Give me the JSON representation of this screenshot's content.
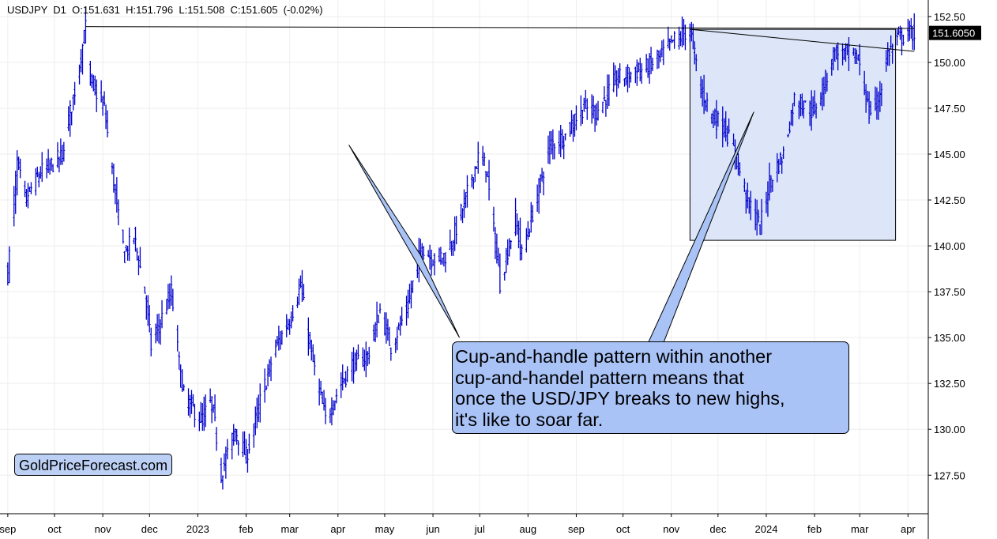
{
  "header": {
    "symbol": "USDJPY",
    "timeframe": "D1",
    "open_label": "O:",
    "open": "151.631",
    "high_label": "H:",
    "high": "151.796",
    "low_label": "L:",
    "low": "151.508",
    "close_label": "C:",
    "close": "151.605",
    "change": "(-0.02%)"
  },
  "price_badge": "151.6050",
  "annotation_lines": [
    "Cup-and-handle pattern within another",
    "cup-and-handel pattern means that",
    "once the USD/JPY breaks to new highs,",
    "it's like to soar far."
  ],
  "brand": "GoldPriceForecast.com",
  "colors": {
    "candle": "#0000cc",
    "highlight_fill": "#dce6f8",
    "callout_fill": "#a9c3f7",
    "badge_fill": "#000000",
    "grid": "#eeeeee"
  },
  "chart_data": {
    "type": "bar",
    "style": "ohlc",
    "ylim": [
      125.4,
      153.4
    ],
    "y_ticks": [
      127.5,
      130.0,
      132.5,
      135.0,
      137.5,
      140.0,
      142.5,
      145.0,
      147.5,
      150.0,
      152.5
    ],
    "y_tick_labels": [
      "127.50",
      "130.00",
      "132.50",
      "135.00",
      "137.50",
      "140.00",
      "142.50",
      "145.00",
      "147.50",
      "150.00",
      "152.50"
    ],
    "x_ticks": [
      {
        "label": "sep",
        "date": "2022-09-01"
      },
      {
        "label": "oct",
        "date": "2022-10-01"
      },
      {
        "label": "nov",
        "date": "2022-11-01"
      },
      {
        "label": "dec",
        "date": "2022-12-01"
      },
      {
        "label": "2023",
        "date": "2023-01-01"
      },
      {
        "label": "feb",
        "date": "2023-02-01"
      },
      {
        "label": "mar",
        "date": "2023-03-01"
      },
      {
        "label": "apr",
        "date": "2023-04-01"
      },
      {
        "label": "may",
        "date": "2023-05-01"
      },
      {
        "label": "jun",
        "date": "2023-06-01"
      },
      {
        "label": "jul",
        "date": "2023-07-01"
      },
      {
        "label": "aug",
        "date": "2023-08-01"
      },
      {
        "label": "sep",
        "date": "2023-09-01"
      },
      {
        "label": "oct",
        "date": "2023-10-01"
      },
      {
        "label": "nov",
        "date": "2023-11-01"
      },
      {
        "label": "dec",
        "date": "2023-12-01"
      },
      {
        "label": "2024",
        "date": "2024-01-01"
      },
      {
        "label": "feb",
        "date": "2024-02-01"
      },
      {
        "label": "mar",
        "date": "2024-03-01"
      },
      {
        "label": "apr",
        "date": "2024-04-01"
      }
    ],
    "price_path": [
      [
        "2022-09-01",
        138.5
      ],
      [
        "2022-09-07",
        144.5
      ],
      [
        "2022-09-12",
        142.5
      ],
      [
        "2022-09-22",
        144.0
      ],
      [
        "2022-10-05",
        144.8
      ],
      [
        "2022-10-14",
        148.5
      ],
      [
        "2022-10-21",
        151.9
      ],
      [
        "2022-10-24",
        149.0
      ],
      [
        "2022-11-02",
        147.5
      ],
      [
        "2022-11-10",
        142.0
      ],
      [
        "2022-11-15",
        139.5
      ],
      [
        "2022-11-21",
        140.5
      ],
      [
        "2022-11-28",
        137.5
      ],
      [
        "2022-12-02",
        134.5
      ],
      [
        "2022-12-15",
        137.5
      ],
      [
        "2022-12-22",
        132.0
      ],
      [
        "2023-01-03",
        130.5
      ],
      [
        "2023-01-10",
        131.5
      ],
      [
        "2023-01-16",
        127.6
      ],
      [
        "2023-01-25",
        130.0
      ],
      [
        "2023-02-01",
        128.5
      ],
      [
        "2023-02-10",
        131.5
      ],
      [
        "2023-02-20",
        134.5
      ],
      [
        "2023-03-01",
        136.0
      ],
      [
        "2023-03-08",
        137.8
      ],
      [
        "2023-03-15",
        134.0
      ],
      [
        "2023-03-24",
        130.5
      ],
      [
        "2023-04-03",
        132.5
      ],
      [
        "2023-04-10",
        133.5
      ],
      [
        "2023-04-20",
        134.0
      ],
      [
        "2023-04-28",
        136.5
      ],
      [
        "2023-05-05",
        134.5
      ],
      [
        "2023-05-15",
        136.5
      ],
      [
        "2023-05-25",
        140.0
      ],
      [
        "2023-05-31",
        139.3
      ],
      [
        "2023-06-10",
        139.5
      ],
      [
        "2023-06-20",
        142.0
      ],
      [
        "2023-06-30",
        144.8
      ],
      [
        "2023-07-05",
        144.3
      ],
      [
        "2023-07-14",
        138.0
      ],
      [
        "2023-07-24",
        141.5
      ],
      [
        "2023-07-28",
        139.5
      ],
      [
        "2023-08-04",
        141.8
      ],
      [
        "2023-08-15",
        145.5
      ],
      [
        "2023-08-25",
        146.0
      ],
      [
        "2023-09-05",
        147.5
      ],
      [
        "2023-09-14",
        147.3
      ],
      [
        "2023-09-26",
        149.0
      ],
      [
        "2023-10-03",
        149.3
      ],
      [
        "2023-10-16",
        149.7
      ],
      [
        "2023-10-25",
        150.3
      ],
      [
        "2023-11-01",
        151.1
      ],
      [
        "2023-11-13",
        151.8
      ],
      [
        "2023-11-20",
        148.5
      ],
      [
        "2023-11-28",
        147.0
      ],
      [
        "2023-12-05",
        146.5
      ],
      [
        "2023-12-12",
        145.0
      ],
      [
        "2023-12-20",
        142.5
      ],
      [
        "2023-12-28",
        141.0
      ],
      [
        "2024-01-03",
        143.5
      ],
      [
        "2024-01-12",
        145.0
      ],
      [
        "2024-01-19",
        148.0
      ],
      [
        "2024-01-31",
        147.3
      ],
      [
        "2024-02-08",
        149.0
      ],
      [
        "2024-02-13",
        150.5
      ],
      [
        "2024-02-26",
        150.4
      ],
      [
        "2024-03-01",
        150.0
      ],
      [
        "2024-03-07",
        147.2
      ],
      [
        "2024-03-13",
        148.0
      ],
      [
        "2024-03-19",
        150.5
      ],
      [
        "2024-03-26",
        151.3
      ],
      [
        "2024-04-02",
        151.6
      ],
      [
        "2024-04-05",
        151.6
      ]
    ],
    "resistance_line": {
      "from": [
        "2022-10-21",
        151.95
      ],
      "to": [
        "2024-04-05",
        151.85
      ]
    },
    "handle_trendline": {
      "from": [
        "2023-11-13",
        151.8
      ],
      "to": [
        "2024-04-05",
        150.6
      ]
    },
    "highlight_box": {
      "x": [
        "2023-11-13",
        "2024-03-24"
      ],
      "y": [
        140.3,
        151.8
      ]
    },
    "callout_pointers": [
      {
        "tip": [
          "2023-04-08",
          145.5
        ],
        "base_left": [
          "2023-05-24",
          139.5
        ],
        "base_right": [
          "2023-06-18",
          135.0
        ]
      },
      {
        "tip": [
          "2023-12-24",
          147.3
        ],
        "base_left": [
          "2023-10-16",
          134.5
        ],
        "base_right": [
          "2023-10-26",
          134.5
        ]
      }
    ],
    "last_value": 151.605
  }
}
